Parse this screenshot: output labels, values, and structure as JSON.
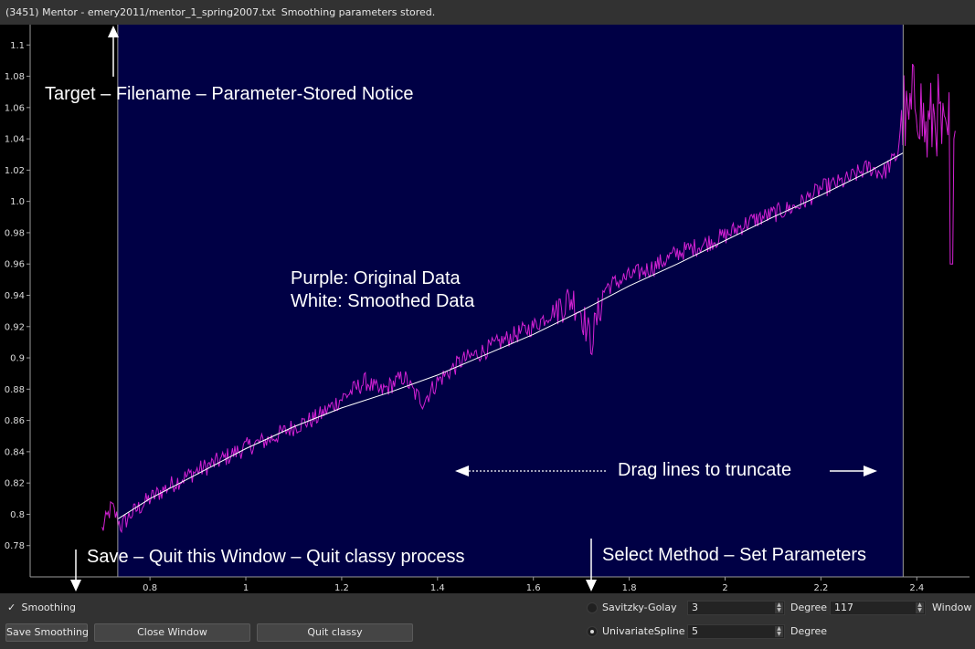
{
  "window": {
    "title": "(3451) Mentor - emery2011/mentor_1_spring2007.txt",
    "status": "Smoothing parameters stored."
  },
  "annotations": {
    "top": "Target – Filename – Parameter-Stored Notice",
    "legend_line1": "Purple: Original Data",
    "legend_line2": "White: Smoothed Data",
    "drag": "Drag lines to truncate",
    "bottom_left": "Save – Quit this Window – Quit classy process",
    "bottom_right": "Select Method – Set Parameters"
  },
  "colors": {
    "plot_bg": "#000000",
    "selection_bg": "#000045",
    "original": "#d321d3",
    "smoothed": "#ffffff",
    "truncate_line": "#9a9a9a",
    "axis": "#9a9a9a"
  },
  "chart_data": {
    "type": "line",
    "xlim": [
      0.55,
      2.51
    ],
    "ylim": [
      0.76,
      1.113
    ],
    "xticks": [
      0.8,
      1,
      1.2,
      1.4,
      1.6,
      1.8,
      2,
      2.2,
      2.4
    ],
    "yticks": [
      0.78,
      0.8,
      0.82,
      0.84,
      0.86,
      0.88,
      0.9,
      0.92,
      0.94,
      0.96,
      0.98,
      1.0,
      1.02,
      1.04,
      1.06,
      1.08,
      1.1
    ],
    "ytick_labels": [
      "0.78",
      "0.8",
      "0.82",
      "0.84",
      "0.86",
      "0.88",
      "0.9",
      "0.92",
      "0.94",
      "0.96",
      "0.98",
      "1.0",
      "1.02",
      "1.04",
      "1.06",
      "1.08",
      "1.1"
    ],
    "truncate_lines_x": [
      0.7328,
      2.3715
    ],
    "series": [
      {
        "x": [
          0.7,
          0.72,
          0.74,
          0.76,
          0.78,
          0.8,
          0.85,
          0.9,
          0.95,
          1.0,
          1.05,
          1.1,
          1.15,
          1.2,
          1.25,
          1.28,
          1.3,
          1.33,
          1.35,
          1.37,
          1.4,
          1.45,
          1.5,
          1.55,
          1.6,
          1.65,
          1.68,
          1.7,
          1.72,
          1.75,
          1.8,
          1.85,
          1.9,
          1.95,
          2.0,
          2.05,
          2.1,
          2.15,
          2.2,
          2.25,
          2.3,
          2.33,
          2.36,
          2.37,
          2.38,
          2.4,
          2.42,
          2.44,
          2.46,
          2.48
        ],
        "y": [
          0.79,
          0.805,
          0.792,
          0.8,
          0.805,
          0.81,
          0.82,
          0.828,
          0.835,
          0.843,
          0.848,
          0.856,
          0.862,
          0.874,
          0.885,
          0.878,
          0.882,
          0.888,
          0.878,
          0.872,
          0.885,
          0.898,
          0.905,
          0.913,
          0.92,
          0.932,
          0.938,
          0.93,
          0.91,
          0.945,
          0.952,
          0.958,
          0.967,
          0.972,
          0.978,
          0.987,
          0.992,
          0.997,
          1.008,
          1.013,
          1.022,
          1.018,
          1.03,
          1.06,
          1.045,
          1.072,
          1.04,
          1.06,
          1.03,
          1.075
        ]
      },
      {
        "x": [
          0.7328,
          0.8,
          0.9,
          1.0,
          1.1,
          1.2,
          1.3,
          1.4,
          1.5,
          1.6,
          1.7,
          1.8,
          1.9,
          2.0,
          2.1,
          2.2,
          2.3,
          2.3715
        ],
        "y": [
          0.797,
          0.81,
          0.826,
          0.842,
          0.856,
          0.868,
          0.878,
          0.889,
          0.902,
          0.915,
          0.93,
          0.946,
          0.96,
          0.975,
          0.99,
          1.004,
          1.019,
          1.031
        ]
      }
    ]
  },
  "controls": {
    "smoothing_check": "✓",
    "smoothing_label": "Smoothing",
    "save_label": "Save Smoothing",
    "close_label": "Close Window",
    "quit_label": "Quit classy",
    "methods": [
      {
        "label": "Savitzky-Golay",
        "selected": false,
        "degree": "3",
        "degree_label": "Degree",
        "window": "117",
        "window_label": "Window"
      },
      {
        "label": "UnivariateSpline",
        "selected": true,
        "degree": "5",
        "degree_label": "Degree"
      }
    ]
  }
}
